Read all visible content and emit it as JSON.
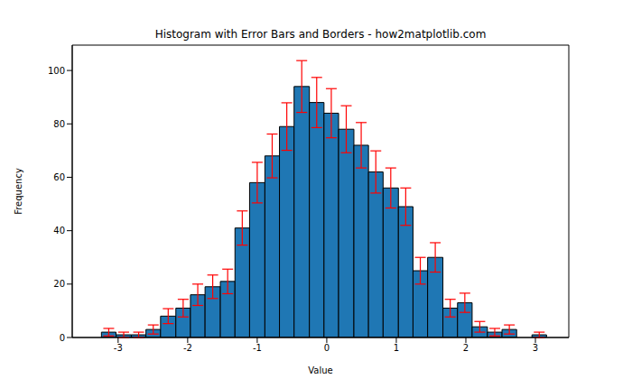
{
  "chart_data": {
    "type": "histogram",
    "title": "Histogram with Error Bars and Borders - how2matplotlib.com",
    "x_label": "Value",
    "y_label": "Frequency",
    "bins": [
      -3.24,
      -3.03,
      -2.81,
      -2.6,
      -2.39,
      -2.17,
      -1.96,
      -1.75,
      -1.53,
      -1.32,
      -1.11,
      -0.89,
      -0.68,
      -0.47,
      -0.25,
      -0.04,
      0.17,
      0.39,
      0.6,
      0.81,
      1.03,
      1.24,
      1.45,
      1.67,
      1.88,
      2.09,
      2.31,
      2.52,
      2.73,
      2.95,
      3.16
    ],
    "values": [
      2,
      1,
      1,
      3,
      8,
      11,
      16,
      19,
      21,
      41,
      58,
      68,
      79,
      94,
      88,
      84,
      78,
      72,
      62,
      56,
      49,
      25,
      30,
      11,
      13,
      4,
      2,
      3,
      0,
      1
    ],
    "errors": [
      1.4,
      1,
      1,
      1.7,
      2.8,
      3.3,
      4,
      4.4,
      4.6,
      6.4,
      7.6,
      8.2,
      8.9,
      9.7,
      9.4,
      9.2,
      8.8,
      8.5,
      7.9,
      7.5,
      7,
      5,
      5.5,
      3.3,
      3.6,
      2,
      1.4,
      1.7,
      0,
      1
    ],
    "color": "#1f77b4",
    "error_color": "red",
    "xlim": [
      -3.66,
      3.48
    ],
    "xticks": [
      -3,
      -2,
      -1,
      0,
      1,
      2,
      3
    ],
    "ylim": [
      0,
      109.5
    ],
    "yticks": [
      0,
      20,
      40,
      60,
      80,
      100
    ],
    "grid": false
  }
}
